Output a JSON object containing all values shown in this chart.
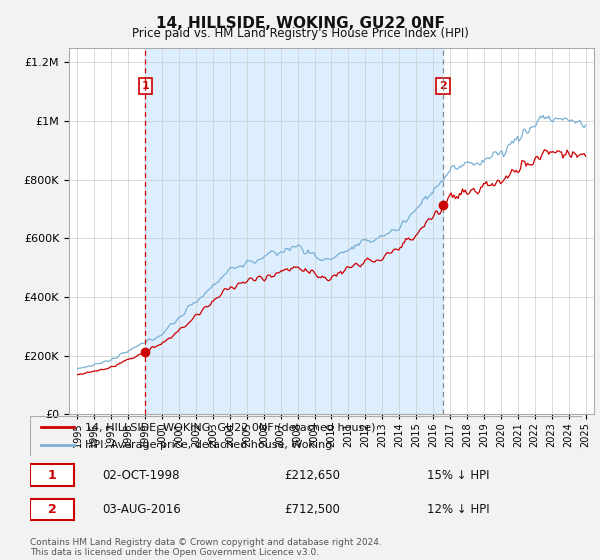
{
  "title": "14, HILLSIDE, WOKING, GU22 0NF",
  "subtitle": "Price paid vs. HM Land Registry's House Price Index (HPI)",
  "legend_label_red": "14, HILLSIDE, WOKING, GU22 0NF (detached house)",
  "legend_label_blue": "HPI: Average price, detached house, Woking",
  "footer": "Contains HM Land Registry data © Crown copyright and database right 2024.\nThis data is licensed under the Open Government Licence v3.0.",
  "sale1_date_x": 1999.0,
  "sale1_price": 212650,
  "sale1_label": "1",
  "sale2_date_x": 2016.58,
  "sale2_price": 712500,
  "sale2_label": "2",
  "ylim_min": 0,
  "ylim_max": 1250000,
  "xlim_min": 1994.5,
  "xlim_max": 2025.5,
  "red_color": "#cc0000",
  "blue_color": "#7ab0d4",
  "sale1_vline_color": "#cc0000",
  "sale2_vline_color": "#888888",
  "shade_color": "#ddeeff",
  "background_color": "#f2f2f2",
  "plot_bg_color": "#ffffff",
  "grid_color": "#cccccc",
  "yticks": [
    0,
    200000,
    400000,
    600000,
    800000,
    1000000,
    1200000
  ]
}
